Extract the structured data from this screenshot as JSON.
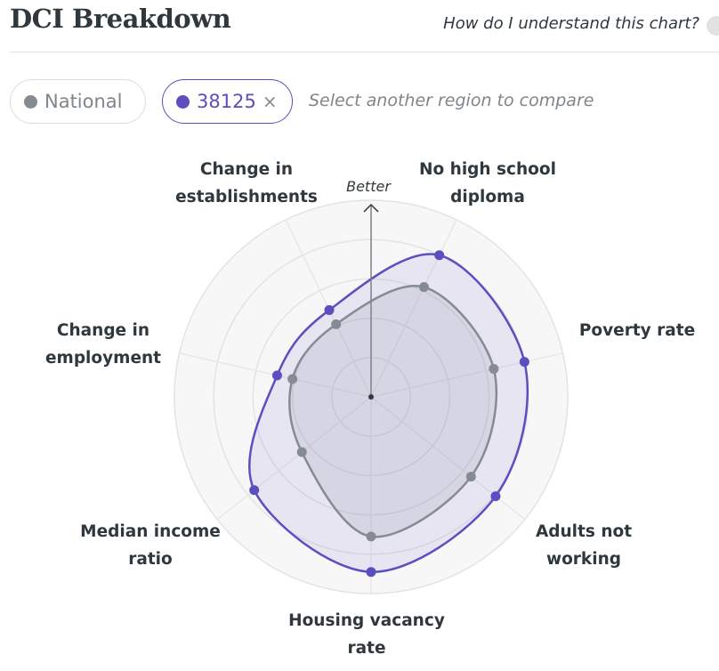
{
  "header": {
    "title": "DCI Breakdown",
    "help_link": "How do I understand this chart?"
  },
  "filters": {
    "national_label": "National",
    "region_label": "38125",
    "remove_icon": "×",
    "compare_placeholder": "Select another region to compare"
  },
  "colors": {
    "national": "#858b92",
    "region": "#5b4fc0"
  },
  "chart_data": {
    "type": "radar",
    "direction_label": "Better",
    "axes": [
      {
        "label_lines": [
          "No high school",
          "diploma"
        ]
      },
      {
        "label_lines": [
          "Poverty rate"
        ]
      },
      {
        "label_lines": [
          "Adults not",
          "working"
        ]
      },
      {
        "label_lines": [
          "Housing vacancy",
          "rate"
        ]
      },
      {
        "label_lines": [
          "Median income",
          "ratio"
        ]
      },
      {
        "label_lines": [
          "Change in",
          "employment"
        ]
      },
      {
        "label_lines": [
          "Change in",
          "establishments"
        ]
      }
    ],
    "range": [
      0,
      1
    ],
    "rings": 5,
    "series": [
      {
        "name": "National",
        "values": [
          0.62,
          0.64,
          0.65,
          0.71,
          0.45,
          0.41,
          0.41
        ]
      },
      {
        "name": "38125",
        "values": [
          0.8,
          0.8,
          0.81,
          0.89,
          0.76,
          0.49,
          0.49
        ]
      }
    ]
  }
}
